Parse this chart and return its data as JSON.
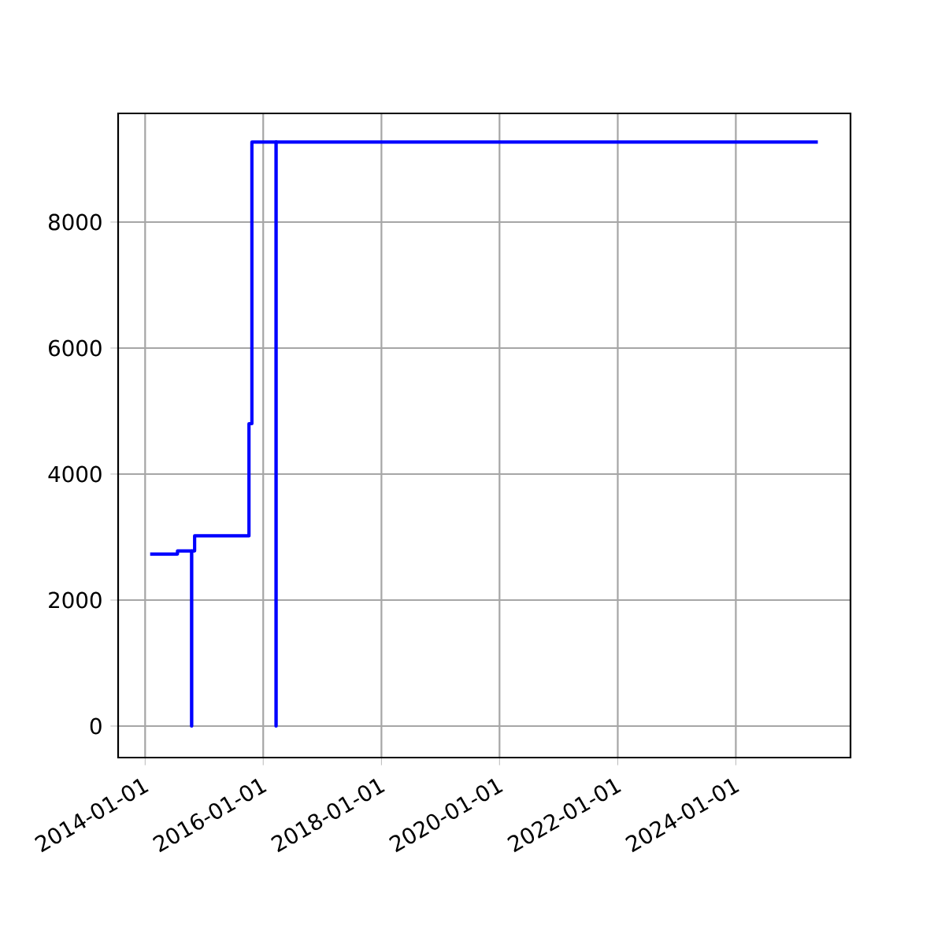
{
  "chart_data": {
    "type": "step",
    "x": [
      "2014-02-01",
      "2014-07-20",
      "2014-10-15",
      "2014-10-16",
      "2014-11-03",
      "2015-10-05",
      "2015-10-23",
      "2016-03-20",
      "2016-03-21",
      "2025-05-22"
    ],
    "values": [
      2730,
      2780,
      0,
      2780,
      3020,
      4800,
      9270,
      0,
      9270,
      9270
    ],
    "color": "#0000ff",
    "xlim": [
      "2013-07-18",
      "2025-12-10"
    ],
    "xticks": [
      "2014-01-01",
      "2016-01-01",
      "2018-01-01",
      "2020-01-01",
      "2022-01-01",
      "2024-01-01"
    ],
    "ylim": [
      -500,
      9725
    ],
    "yticks": [
      0,
      2000,
      4000,
      6000,
      8000
    ],
    "grid": true
  }
}
